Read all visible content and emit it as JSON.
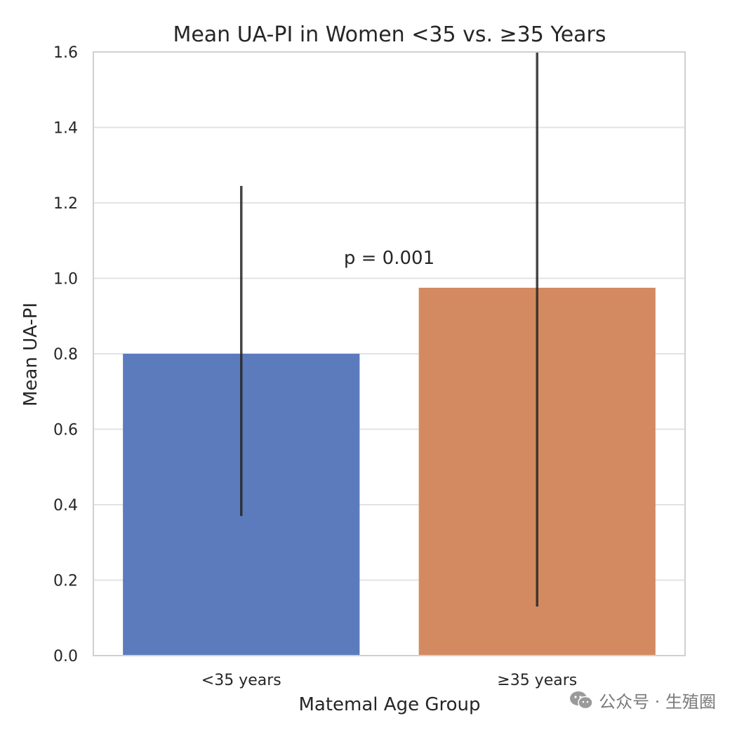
{
  "chart_data": {
    "type": "bar",
    "title": "Mean UA-PI in Women <35 vs. ≥35 Years",
    "xlabel": "Matemal Age Group",
    "ylabel": "Mean UA-PI",
    "categories": [
      "<35 years",
      "≥35 years"
    ],
    "values": [
      0.8,
      0.975
    ],
    "error_bars": [
      {
        "low": 0.37,
        "high": 1.245
      },
      {
        "low": 0.13,
        "high": 1.6
      }
    ],
    "bar_colors": [
      "#5b7bbd",
      "#d48a60"
    ],
    "error_bar_color": "#262626",
    "ylim": [
      0,
      1.6
    ],
    "yticks": [
      0.0,
      0.2,
      0.4,
      0.6,
      0.8,
      1.0,
      1.2,
      1.4,
      1.6
    ],
    "ytick_labels": [
      "0.0",
      "0.2",
      "0.4",
      "0.6",
      "0.8",
      "1.0",
      "1.2",
      "1.4",
      "1.6"
    ],
    "grid": true,
    "annotation": {
      "text": "p = 0.001",
      "x": 0.5,
      "y": 1.055
    }
  },
  "watermark": {
    "text": "公众号 · 生殖圈",
    "icon": "wechat-icon"
  }
}
